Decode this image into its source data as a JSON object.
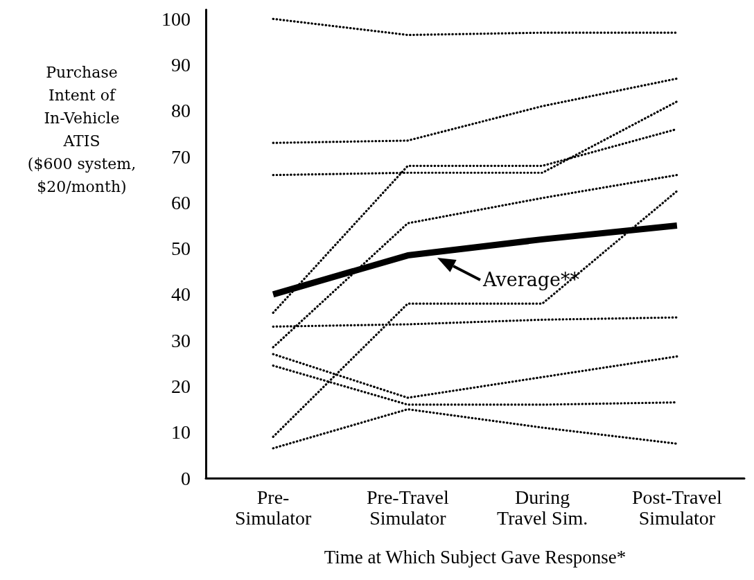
{
  "chart_data": {
    "type": "line",
    "xlabel": "Time at Which Subject Gave Response*",
    "ylabel": "Purchase\nIntent of\nIn-Vehicle\nATIS\n($600 system,\n$20/month)",
    "categories": [
      "Pre-\nSimulator",
      "Pre-Travel\nSimulator",
      "During\nTravel Sim.",
      "Post-Travel\nSimulator"
    ],
    "series": [
      {
        "color": "#000000",
        "values": [
          100,
          96.5,
          97,
          97
        ]
      },
      {
        "color": "#000000",
        "values": [
          73,
          73.5,
          81,
          87
        ]
      },
      {
        "color": "#000000",
        "values": [
          66,
          66.5,
          66.5,
          82
        ]
      },
      {
        "color": "#000000",
        "values": [
          36,
          68,
          68,
          76
        ]
      },
      {
        "color": "#000000",
        "values": [
          28.5,
          55.5,
          61,
          66
        ]
      },
      {
        "color": "#000000",
        "values": [
          33,
          33.5,
          34.5,
          35
        ]
      },
      {
        "color": "#000000",
        "values": [
          9,
          38,
          38,
          62.5
        ]
      },
      {
        "color": "#000000",
        "values": [
          6.5,
          15,
          11,
          7.5
        ]
      },
      {
        "color": "#000000",
        "values": [
          27,
          17.5,
          22,
          26.5
        ]
      },
      {
        "color": "#000000",
        "values": [
          24.5,
          16,
          16,
          16.5
        ]
      },
      {
        "name": "Average**",
        "color": "#000000",
        "line_style": "solid",
        "values": [
          40,
          48.5,
          52,
          55
        ]
      }
    ],
    "ylim": [
      0,
      102
    ],
    "yticks": [
      0,
      10,
      20,
      30,
      40,
      50,
      60,
      70,
      80,
      90,
      100
    ],
    "line_style": "dotted"
  }
}
